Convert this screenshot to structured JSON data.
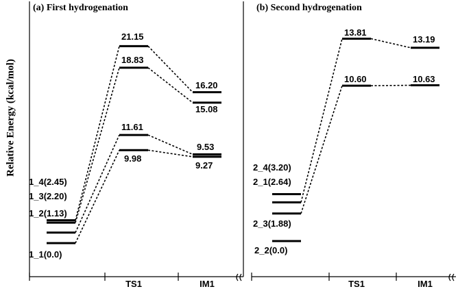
{
  "ylabel": "Relative Energy (kcal/mol)",
  "chart_data": [
    {
      "type": "energy-profile",
      "title": "(a) First hydrogenation",
      "ylabel": "Relative Energy (kcal/mol)",
      "stages": [
        "",
        "TS1",
        "IM1"
      ],
      "pathways": [
        {
          "reactant_label": "1_1(0.0)",
          "energies": [
            0.0,
            9.98,
            9.27
          ],
          "labels": [
            "1_1(0.0)",
            "9.98",
            "9.27"
          ]
        },
        {
          "reactant_label": "1_2(1.13)",
          "energies": [
            1.13,
            11.61,
            9.53
          ],
          "labels": [
            "1_2(1.13)",
            "11.61",
            "9.53"
          ]
        },
        {
          "reactant_label": "1_3(2.20)",
          "energies": [
            2.2,
            18.83,
            15.08
          ],
          "labels": [
            "1_3(2.20)",
            "18.83",
            "15.08"
          ]
        },
        {
          "reactant_label": "1_4(2.45)",
          "energies": [
            2.45,
            21.15,
            16.2
          ],
          "labels": [
            "1_4(2.45)",
            "21.15",
            "16.20"
          ]
        }
      ]
    },
    {
      "type": "energy-profile",
      "title": "(b) Second hydrogenation",
      "stages": [
        "",
        "TS1",
        "IM1"
      ],
      "pathways": [
        {
          "reactant_label": "2_2(0.0)",
          "energies": [
            0.0,
            null,
            null
          ],
          "labels": [
            "2_2(0.0)",
            "",
            ""
          ]
        },
        {
          "reactant_label": "2_3(1.88)",
          "energies": [
            1.88,
            10.6,
            10.63
          ],
          "labels": [
            "2_3(1.88)",
            "10.60",
            "10.63"
          ]
        },
        {
          "reactant_label": "2_1(2.64)",
          "energies": [
            2.64,
            13.81,
            13.19
          ],
          "labels": [
            "2_1(2.64)",
            "13.81",
            "13.19"
          ]
        },
        {
          "reactant_label": "2_4(3.20)",
          "energies": [
            3.2,
            null,
            null
          ],
          "labels": [
            "2_4(3.20)",
            "",
            ""
          ]
        }
      ]
    }
  ]
}
